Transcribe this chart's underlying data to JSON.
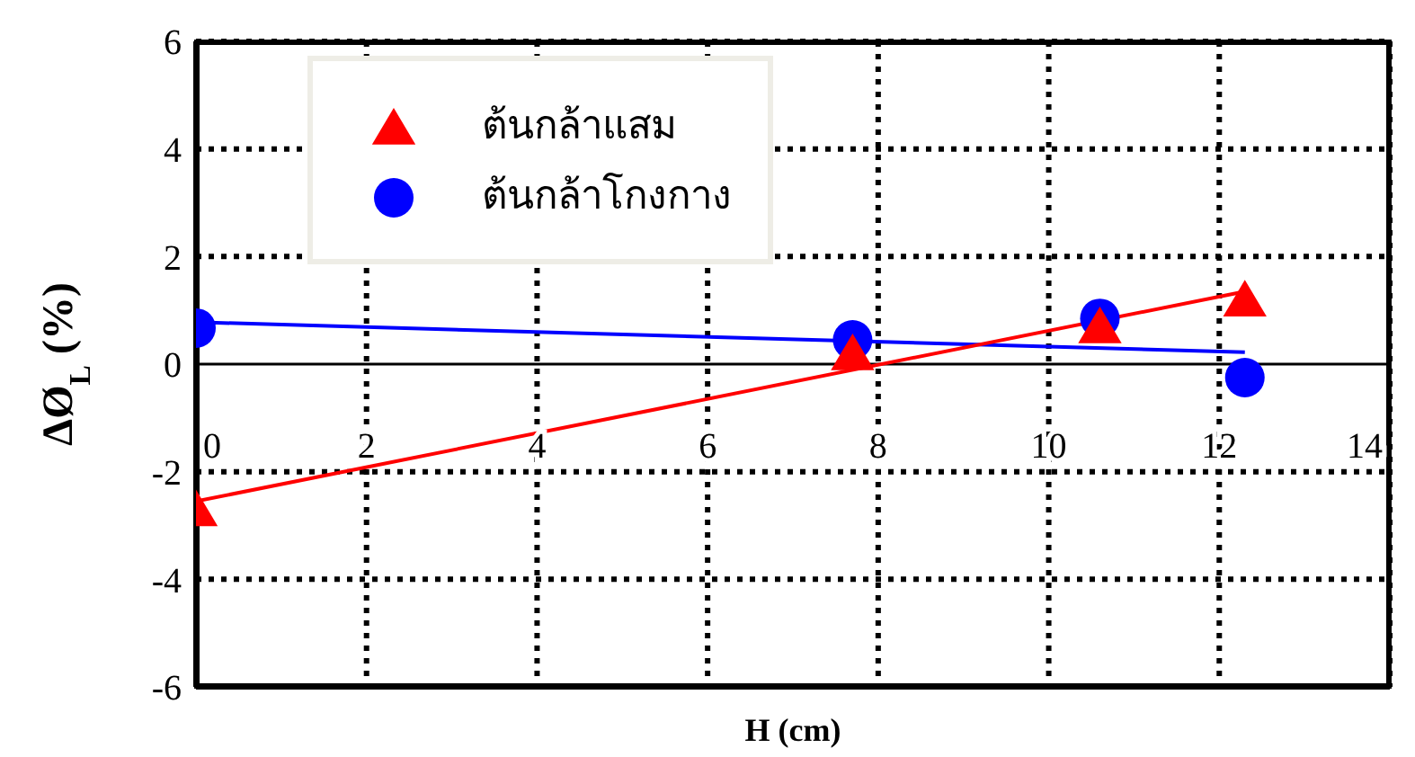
{
  "chart_data": {
    "type": "scatter",
    "xlabel": "H (cm)",
    "ylabel": "ΔØ$_{L}$ (%)",
    "xlim": [
      0,
      14
    ],
    "xticks": [
      0,
      2,
      4,
      6,
      8,
      10,
      12,
      14
    ],
    "ylim": [
      -6,
      6
    ],
    "yticks": [
      -6,
      -4,
      -2,
      0,
      2,
      4,
      6
    ],
    "grid": true,
    "legend": "top left",
    "series": [
      {
        "name": "ต้นกล้าแสม",
        "type": "scatter",
        "marker": "triangle",
        "color": "#ff0000",
        "x": [
          0,
          7.7,
          10.6,
          12.3
        ],
        "values": [
          -2.7,
          0.2,
          0.7,
          1.2
        ]
      },
      {
        "name": "ต้นกล้าโกงกาง",
        "type": "scatter",
        "marker": "circle",
        "color": "#0000ff",
        "x": [
          0,
          7.7,
          10.6,
          12.3
        ],
        "values": [
          0.67,
          0.45,
          0.85,
          -0.25
        ]
      },
      {
        "type": "line",
        "marker": "none",
        "color": "#ff0000",
        "x": [
          0,
          12.3
        ],
        "values": [
          -2.55,
          1.35
        ]
      },
      {
        "type": "line",
        "marker": "none",
        "color": "#0000ff",
        "x": [
          0,
          12.3
        ],
        "values": [
          0.78,
          0.22
        ]
      }
    ]
  }
}
